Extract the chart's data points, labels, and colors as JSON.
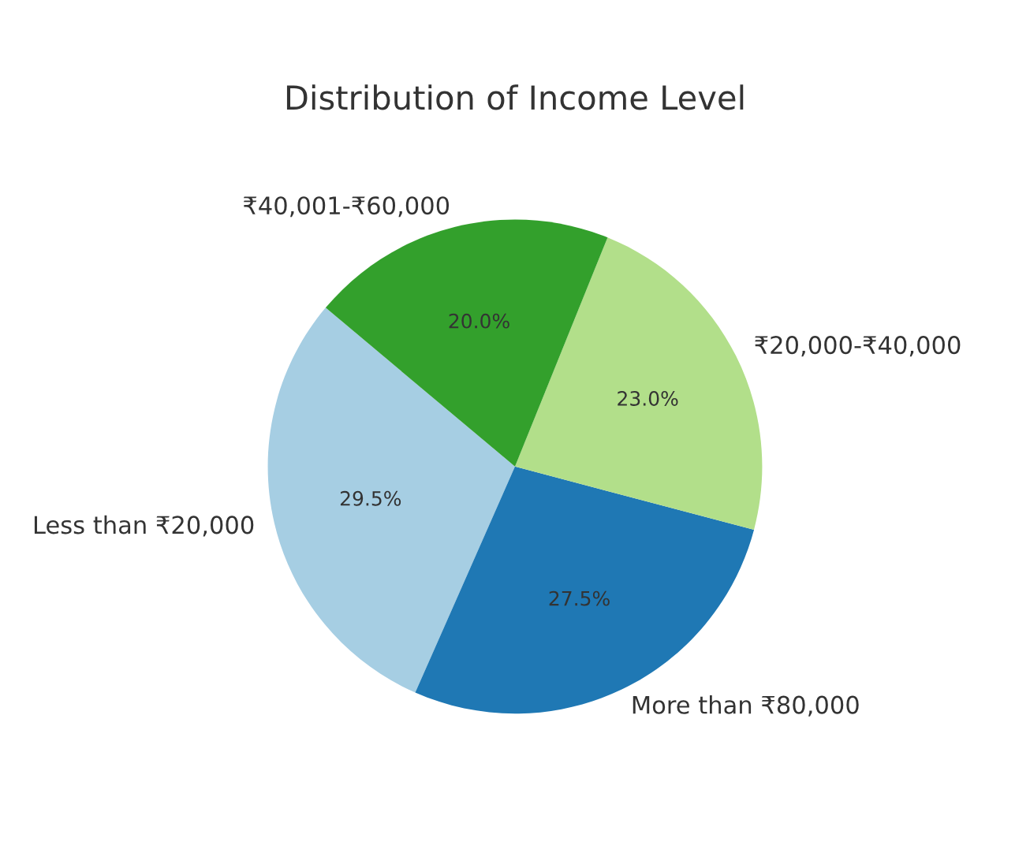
{
  "chart_data": {
    "type": "pie",
    "title": "Distribution of Income Level",
    "categories": [
      "Less than ₹20,000",
      "More than ₹80,000",
      "₹20,000-₹40,000",
      "₹40,001-₹60,000"
    ],
    "values": [
      29.5,
      27.5,
      23.0,
      20.0
    ],
    "colors": [
      "#a6cee3",
      "#1f78b4",
      "#b2df8a",
      "#33a02c"
    ],
    "value_labels": [
      "29.5%",
      "27.5%",
      "23.0%",
      "20.0%"
    ]
  }
}
